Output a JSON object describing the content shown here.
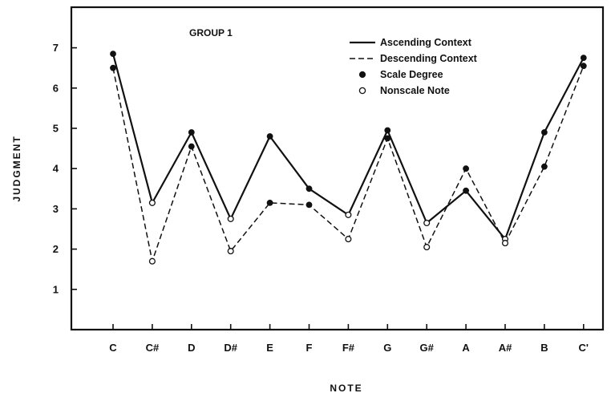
{
  "chart_data": {
    "type": "line",
    "title": "GROUP 1",
    "xlabel": "NOTE",
    "ylabel": "JUDGMENT",
    "categories": [
      "C",
      "C#",
      "D",
      "D#",
      "E",
      "F",
      "F#",
      "G",
      "G#",
      "A",
      "A#",
      "B",
      "C'"
    ],
    "ylim": [
      0,
      7.8
    ],
    "yticks": [
      1,
      2,
      3,
      4,
      5,
      6,
      7
    ],
    "grid": false,
    "legend_position": "top-right",
    "series": [
      {
        "name": "Ascending Context",
        "style": "solid",
        "values": [
          6.85,
          3.15,
          4.9,
          2.75,
          4.8,
          3.5,
          2.85,
          4.95,
          2.65,
          3.45,
          2.25,
          4.9,
          6.75
        ]
      },
      {
        "name": "Descending Context",
        "style": "dashed",
        "values": [
          6.5,
          1.7,
          4.55,
          1.95,
          3.15,
          3.1,
          2.25,
          4.75,
          2.05,
          4.0,
          2.15,
          4.05,
          6.55
        ]
      }
    ],
    "scale_degree_categories": [
      "C",
      "D",
      "E",
      "F",
      "G",
      "A",
      "B",
      "C'"
    ],
    "legend": [
      {
        "label": "Ascending Context",
        "symbol": "solid-line"
      },
      {
        "label": "Descending Context",
        "symbol": "dashed-line"
      },
      {
        "label": "Scale Degree",
        "symbol": "filled-circle"
      },
      {
        "label": "Nonscale Note",
        "symbol": "open-circle"
      }
    ]
  }
}
